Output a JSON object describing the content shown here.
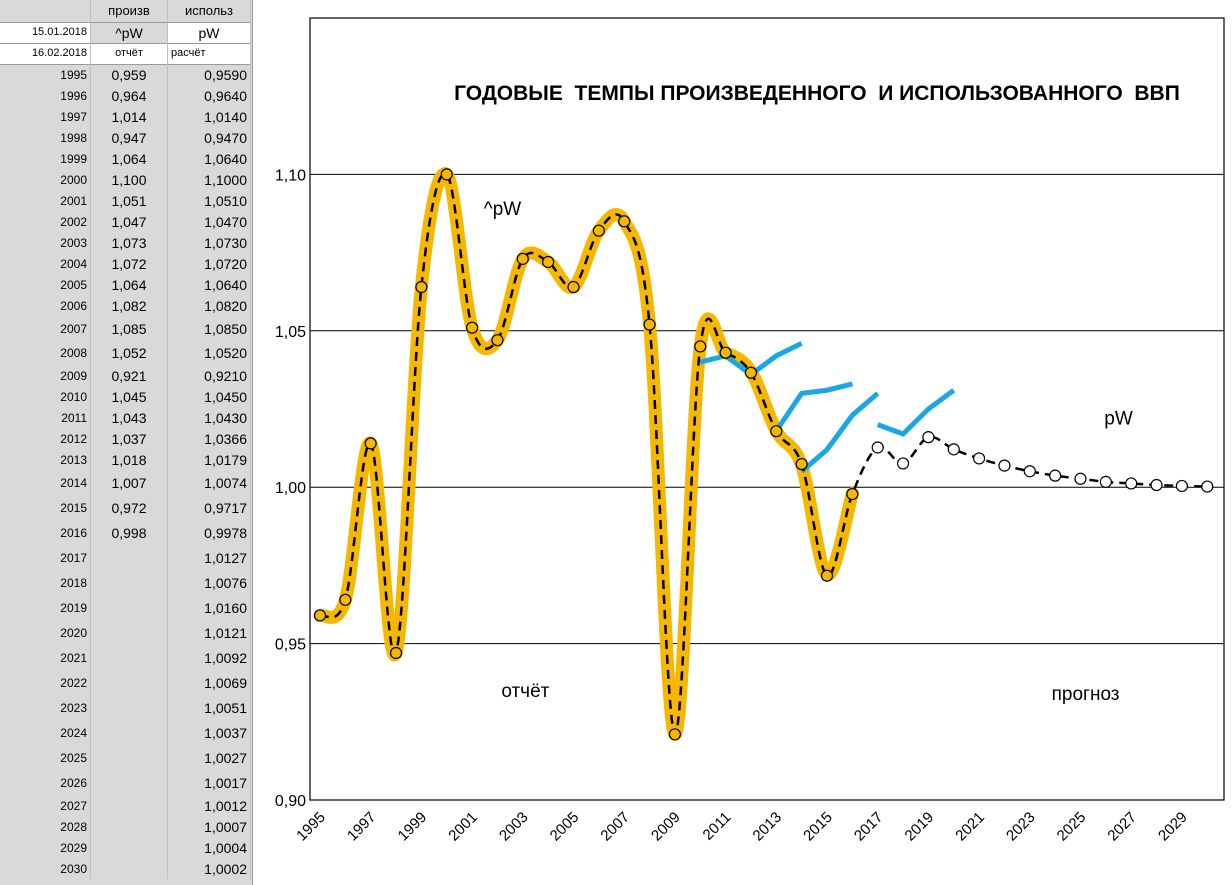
{
  "sheet": {
    "col_b_header": "произв",
    "col_c_header": "использ",
    "date1": "15.01.2018",
    "b_series": "^pW",
    "c_series": "pW",
    "date2": "16.02.2018",
    "b_kind": "отчёт",
    "c_kind": "расчёт",
    "rows": [
      {
        "year": "1995",
        "a": "0,959",
        "b": "0,9590"
      },
      {
        "year": "1996",
        "a": "0,964",
        "b": "0,9640"
      },
      {
        "year": "1997",
        "a": "1,014",
        "b": "1,0140"
      },
      {
        "year": "1998",
        "a": "0,947",
        "b": "0,9470"
      },
      {
        "year": "1999",
        "a": "1,064",
        "b": "1,0640"
      },
      {
        "year": "2000",
        "a": "1,100",
        "b": "1,1000"
      },
      {
        "year": "2001",
        "a": "1,051",
        "b": "1,0510"
      },
      {
        "year": "2002",
        "a": "1,047",
        "b": "1,0470"
      },
      {
        "year": "2003",
        "a": "1,073",
        "b": "1,0730"
      },
      {
        "year": "2004",
        "a": "1,072",
        "b": "1,0720"
      },
      {
        "year": "2005",
        "a": "1,064",
        "b": "1,0640"
      },
      {
        "year": "2006",
        "a": "1,082",
        "b": "1,0820"
      },
      {
        "year": "2007",
        "a": "1,085",
        "b": "1,0850"
      },
      {
        "year": "2008",
        "a": "1,052",
        "b": "1,0520"
      },
      {
        "year": "2009",
        "a": "0,921",
        "b": "0,9210"
      },
      {
        "year": "2010",
        "a": "1,045",
        "b": "1,0450"
      },
      {
        "year": "2011",
        "a": "1,043",
        "b": "1,0430"
      },
      {
        "year": "2012",
        "a": "1,037",
        "b": "1,0366"
      },
      {
        "year": "2013",
        "a": "1,018",
        "b": "1,0179"
      },
      {
        "year": "2014",
        "a": "1,007",
        "b": "1,0074"
      },
      {
        "year": "2015",
        "a": "0,972",
        "b": "0,9717"
      },
      {
        "year": "2016",
        "a": "0,998",
        "b": "0,9978"
      },
      {
        "year": "2017",
        "a": "",
        "b": "1,0127"
      },
      {
        "year": "2018",
        "a": "",
        "b": "1,0076"
      },
      {
        "year": "2019",
        "a": "",
        "b": "1,0160"
      },
      {
        "year": "2020",
        "a": "",
        "b": "1,0121"
      },
      {
        "year": "2021",
        "a": "",
        "b": "1,0092"
      },
      {
        "year": "2022",
        "a": "",
        "b": "1,0069"
      },
      {
        "year": "2023",
        "a": "",
        "b": "1,0051"
      },
      {
        "year": "2024",
        "a": "",
        "b": "1,0037"
      },
      {
        "year": "2025",
        "a": "",
        "b": "1,0027"
      },
      {
        "year": "2026",
        "a": "",
        "b": "1,0017"
      },
      {
        "year": "2027",
        "a": "",
        "b": "1,0012"
      },
      {
        "year": "2028",
        "a": "",
        "b": "1,0007"
      },
      {
        "year": "2029",
        "a": "",
        "b": "1,0004"
      },
      {
        "year": "2030",
        "a": "",
        "b": "1,0002"
      }
    ]
  },
  "chart_data": {
    "type": "line",
    "title": "ГОДОВЫЕ  ТЕМПЫ ПРОИЗВЕДЕННОГО  И ИСПОЛЬЗОВАННОГО  ВВП",
    "xlabel": "",
    "ylabel": "",
    "ylim": [
      0.9,
      1.15
    ],
    "xlim": [
      1995,
      2030
    ],
    "yticks": [
      "0,90",
      "0,95",
      "1,00",
      "1,05",
      "1,10"
    ],
    "ytick_values": [
      0.9,
      0.95,
      1.0,
      1.05,
      1.1
    ],
    "xticks": [
      "1995",
      "1997",
      "1999",
      "2001",
      "2003",
      "2005",
      "2007",
      "2009",
      "2011",
      "2013",
      "2015",
      "2017",
      "2019",
      "2021",
      "2023",
      "2025",
      "2027",
      "2029"
    ],
    "grid": "horizontal",
    "annotations": [
      {
        "text": "^pW",
        "x": 2002.2,
        "y": 1.087
      },
      {
        "text": "pW",
        "x": 2026.5,
        "y": 1.02
      },
      {
        "text": "отчёт",
        "x": 2003.1,
        "y": 0.933
      },
      {
        "text": "прогноз",
        "x": 2025.2,
        "y": 0.932
      }
    ],
    "series": [
      {
        "name": "^pW",
        "color": "#f5b700",
        "x": [
          1995,
          1996,
          1997,
          1998,
          1999,
          2000,
          2001,
          2002,
          2003,
          2004,
          2005,
          2006,
          2007,
          2008,
          2009,
          2010,
          2011,
          2012,
          2013,
          2014,
          2015,
          2016
        ],
        "values": [
          0.959,
          0.964,
          1.014,
          0.947,
          1.064,
          1.1,
          1.051,
          1.047,
          1.073,
          1.072,
          1.064,
          1.082,
          1.085,
          1.052,
          0.921,
          1.045,
          1.043,
          1.037,
          1.018,
          1.007,
          0.972,
          0.998
        ]
      },
      {
        "name": "pW",
        "color": "#000000",
        "x": [
          1995,
          1996,
          1997,
          1998,
          1999,
          2000,
          2001,
          2002,
          2003,
          2004,
          2005,
          2006,
          2007,
          2008,
          2009,
          2010,
          2011,
          2012,
          2013,
          2014,
          2015,
          2016,
          2017,
          2018,
          2019,
          2020,
          2021,
          2022,
          2023,
          2024,
          2025,
          2026,
          2027,
          2028,
          2029,
          2030
        ],
        "values": [
          0.959,
          0.964,
          1.014,
          0.947,
          1.064,
          1.1,
          1.051,
          1.047,
          1.073,
          1.072,
          1.064,
          1.082,
          1.085,
          1.052,
          0.921,
          1.045,
          1.043,
          1.0366,
          1.0179,
          1.0074,
          0.9717,
          0.9978,
          1.0127,
          1.0076,
          1.016,
          1.0121,
          1.0092,
          1.0069,
          1.0051,
          1.0037,
          1.0027,
          1.0017,
          1.0012,
          1.0007,
          1.0004,
          1.0002
        ]
      }
    ],
    "forecast_lines": {
      "color": "#1aa7e8",
      "lines": [
        {
          "x": [
            2010,
            2011,
            2012,
            2013,
            2014
          ],
          "values": [
            1.04,
            1.042,
            1.036,
            1.042,
            1.046
          ]
        },
        {
          "x": [
            2013,
            2014,
            2015,
            2016
          ],
          "values": [
            1.018,
            1.03,
            1.031,
            1.033
          ]
        },
        {
          "x": [
            2014,
            2015,
            2016,
            2017
          ],
          "values": [
            1.005,
            1.012,
            1.023,
            1.03
          ]
        },
        {
          "x": [
            2017,
            2018,
            2019,
            2020
          ],
          "values": [
            1.02,
            1.017,
            1.025,
            1.031
          ]
        }
      ]
    }
  }
}
